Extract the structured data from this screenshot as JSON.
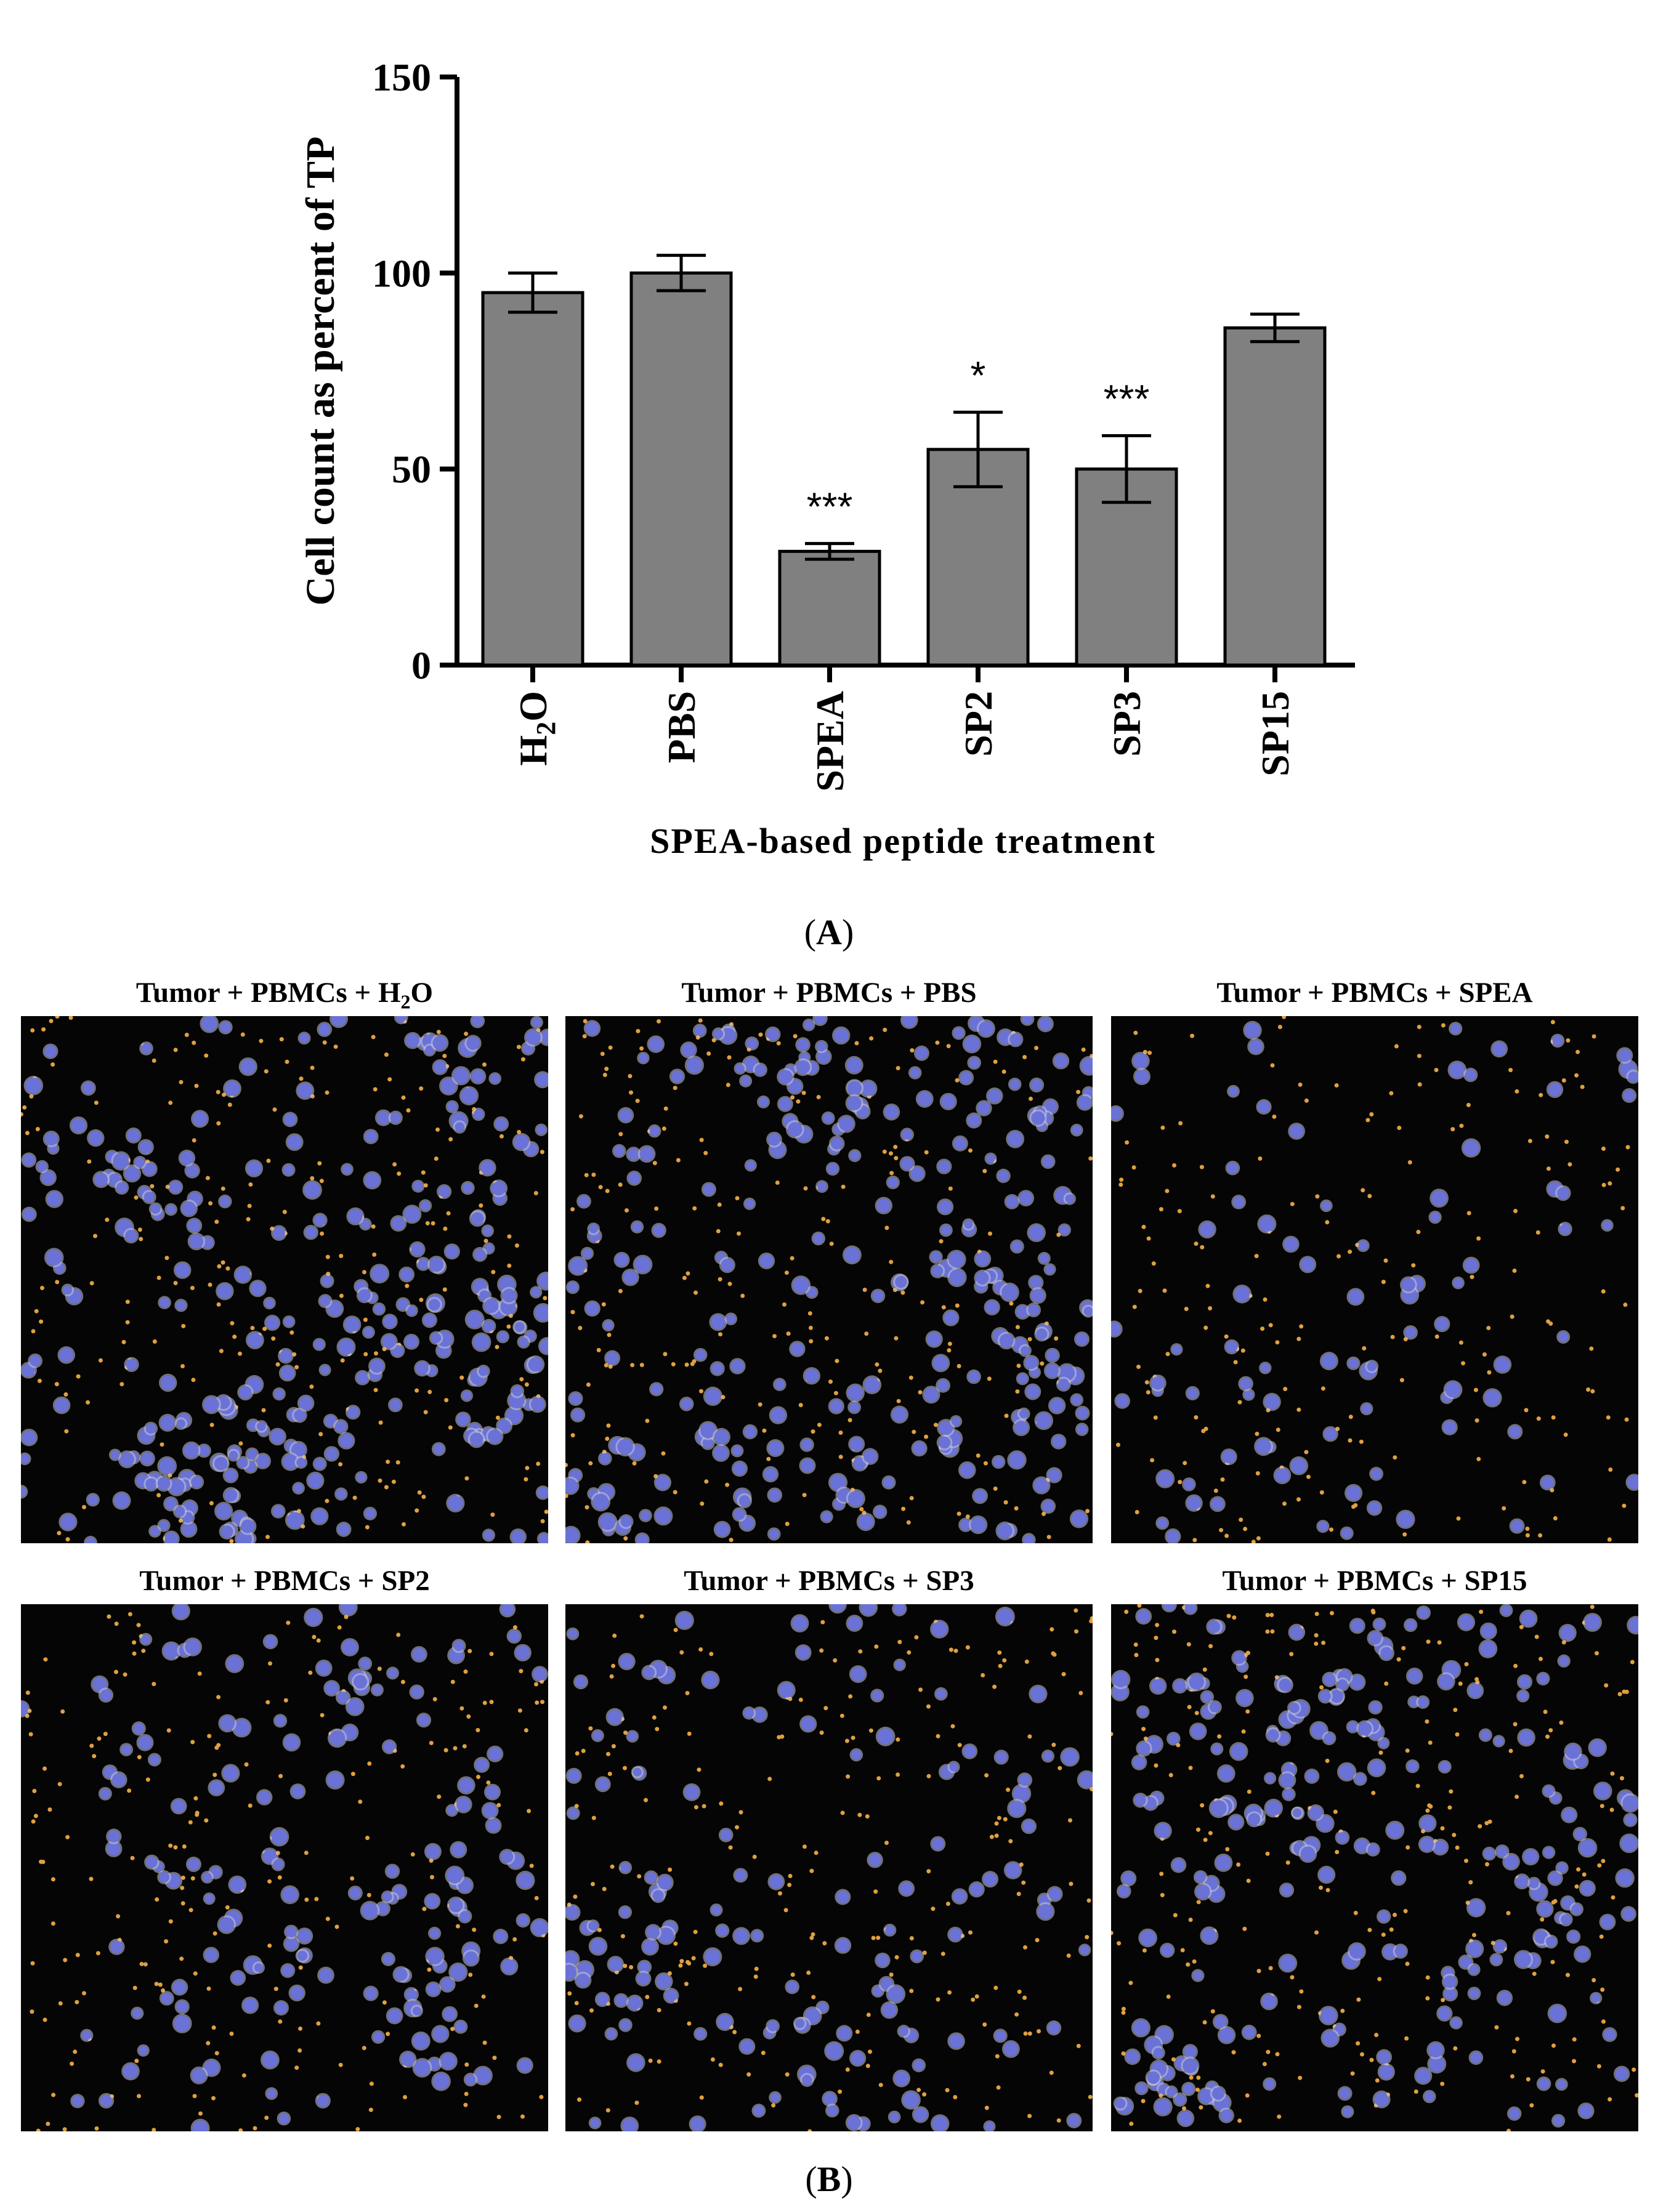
{
  "chart_data": {
    "type": "bar",
    "categories": [
      "H2O",
      "PBS",
      "SPEA",
      "SP2",
      "SP3",
      "SP15"
    ],
    "category_labels": [
      {
        "base": "H",
        "sub": "2",
        "rest": "O"
      },
      {
        "base": "PBS",
        "sub": "",
        "rest": ""
      },
      {
        "base": "SPEA",
        "sub": "",
        "rest": ""
      },
      {
        "base": "SP2",
        "sub": "",
        "rest": ""
      },
      {
        "base": "SP3",
        "sub": "",
        "rest": ""
      },
      {
        "base": "SP15",
        "sub": "",
        "rest": ""
      }
    ],
    "values": [
      95,
      100,
      29,
      55,
      50,
      86
    ],
    "errors": [
      5,
      4.5,
      2,
      9.5,
      8.5,
      3.5
    ],
    "significance": [
      "",
      "",
      "***",
      "*",
      "***",
      ""
    ],
    "xlabel": "SPEA-based peptide treatment",
    "ylabel": "Cell count as percent of TP",
    "ylim": [
      0,
      150
    ],
    "yticks": [
      0,
      50,
      100,
      150
    ],
    "bar_color": "#808080",
    "grid": false
  },
  "panels": {
    "a_label": {
      "open": "(",
      "letter": "A",
      "close": ")"
    },
    "b_label": {
      "open": "(",
      "letter": "B",
      "close": ")"
    }
  },
  "micrographs": [
    {
      "title_pre": "Tumor + PBMCs + H",
      "title_sub": "2",
      "title_post": "O",
      "tumor_cells": 340,
      "pbmc_dots": 260,
      "seed": 11
    },
    {
      "title_pre": "Tumor + PBMCs + PBS",
      "title_sub": "",
      "title_post": "",
      "tumor_cells": 320,
      "pbmc_dots": 230,
      "seed": 23
    },
    {
      "title_pre": "Tumor + PBMCs + SPEA",
      "title_sub": "",
      "title_post": "",
      "tumor_cells": 90,
      "pbmc_dots": 200,
      "seed": 37
    },
    {
      "title_pre": "Tumor + PBMCs + SP2",
      "title_sub": "",
      "title_post": "",
      "tumor_cells": 170,
      "pbmc_dots": 230,
      "seed": 41
    },
    {
      "title_pre": "Tumor + PBMCs + SP3",
      "title_sub": "",
      "title_post": "",
      "tumor_cells": 160,
      "pbmc_dots": 230,
      "seed": 53
    },
    {
      "title_pre": "Tumor + PBMCs + SP15",
      "title_sub": "",
      "title_post": "",
      "tumor_cells": 290,
      "pbmc_dots": 250,
      "seed": 67
    }
  ],
  "colors": {
    "tumor_cell": "#6a72d8",
    "tumor_cell_glow": "#c8c8d8",
    "pbmc": "#e0a040",
    "background": "#050505"
  }
}
